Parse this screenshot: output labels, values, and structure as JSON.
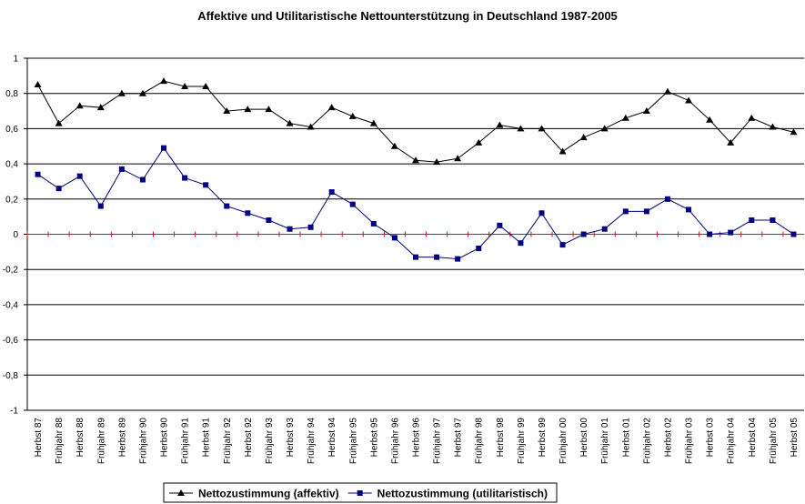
{
  "chart_data": {
    "type": "line",
    "title": "Affektive und Utilitaristische Nettounterstützung in Deutschland 1987-2005",
    "categories": [
      "Herbst 87",
      "Frühjahr 88",
      "Herbst 88",
      "Frühjahr 89",
      "Herbst 89",
      "Frühjahr 90",
      "Herbst 90",
      "Frühjahr 91",
      "Herbst 91",
      "Frühjahr 92",
      "Herbst 92",
      "Frühjahr 93",
      "Herbst 93",
      "Frühjahr 94",
      "Herbst 94",
      "Frühjahr 95",
      "Herbst 95",
      "Frühjahr 96",
      "Herbst 96",
      "Frühjahr 97",
      "Herbst 97",
      "Frühjahr 98",
      "Herbst 98",
      "Frühjahr 99",
      "Herbst 99",
      "Frühjahr 00",
      "Herbst 00",
      "Frühjahr 01",
      "Herbst 01",
      "Frühjahr 02",
      "Herbst 02",
      "Frühjahr 03",
      "Herbst 03",
      "Frühjahr 04",
      "Herbst 04",
      "Frühjahr 05",
      "Herbst 05"
    ],
    "series": [
      {
        "name": "Nettozustimmung (affektiv)",
        "color": "#000000",
        "marker": "triangle",
        "values": [
          0.85,
          0.63,
          0.73,
          0.72,
          0.8,
          0.8,
          0.87,
          0.84,
          0.84,
          0.7,
          0.71,
          0.71,
          0.63,
          0.61,
          0.72,
          0.67,
          0.63,
          0.5,
          0.42,
          0.41,
          0.43,
          0.52,
          0.62,
          0.6,
          0.6,
          0.47,
          0.55,
          0.6,
          0.66,
          0.7,
          0.81,
          0.76,
          0.65,
          0.52,
          0.66,
          0.61,
          0.58
        ]
      },
      {
        "name": "Nettozustimmung (utilitaristisch)",
        "color": "#000080",
        "marker": "square",
        "values": [
          0.34,
          0.26,
          0.33,
          0.16,
          0.37,
          0.31,
          0.49,
          0.32,
          0.28,
          0.16,
          0.12,
          0.08,
          0.03,
          0.04,
          0.24,
          0.17,
          0.06,
          -0.02,
          -0.13,
          -0.13,
          -0.14,
          -0.08,
          0.05,
          -0.05,
          0.12,
          -0.06,
          0.0,
          0.03,
          0.13,
          0.13,
          0.2,
          0.14,
          0.0,
          0.01,
          0.08,
          0.08,
          0.0
        ]
      }
    ],
    "ylim": [
      -1,
      1
    ],
    "yticks": [
      -1,
      {
        "value": -0.8,
        "label": "-0,8"
      },
      {
        "value": -0.6,
        "label": "-0,6"
      },
      {
        "value": -0.4,
        "label": "-0,4"
      },
      {
        "value": -0.2,
        "label": "-0,2"
      },
      0,
      {
        "value": 0.2,
        "label": "0,2"
      },
      {
        "value": 0.4,
        "label": "0,4"
      },
      {
        "value": 0.6,
        "label": "0,6"
      },
      {
        "value": 0.8,
        "label": "0,8"
      },
      1
    ],
    "grid": true,
    "zero_line_color": "#ff0000",
    "legend": "bottom"
  }
}
